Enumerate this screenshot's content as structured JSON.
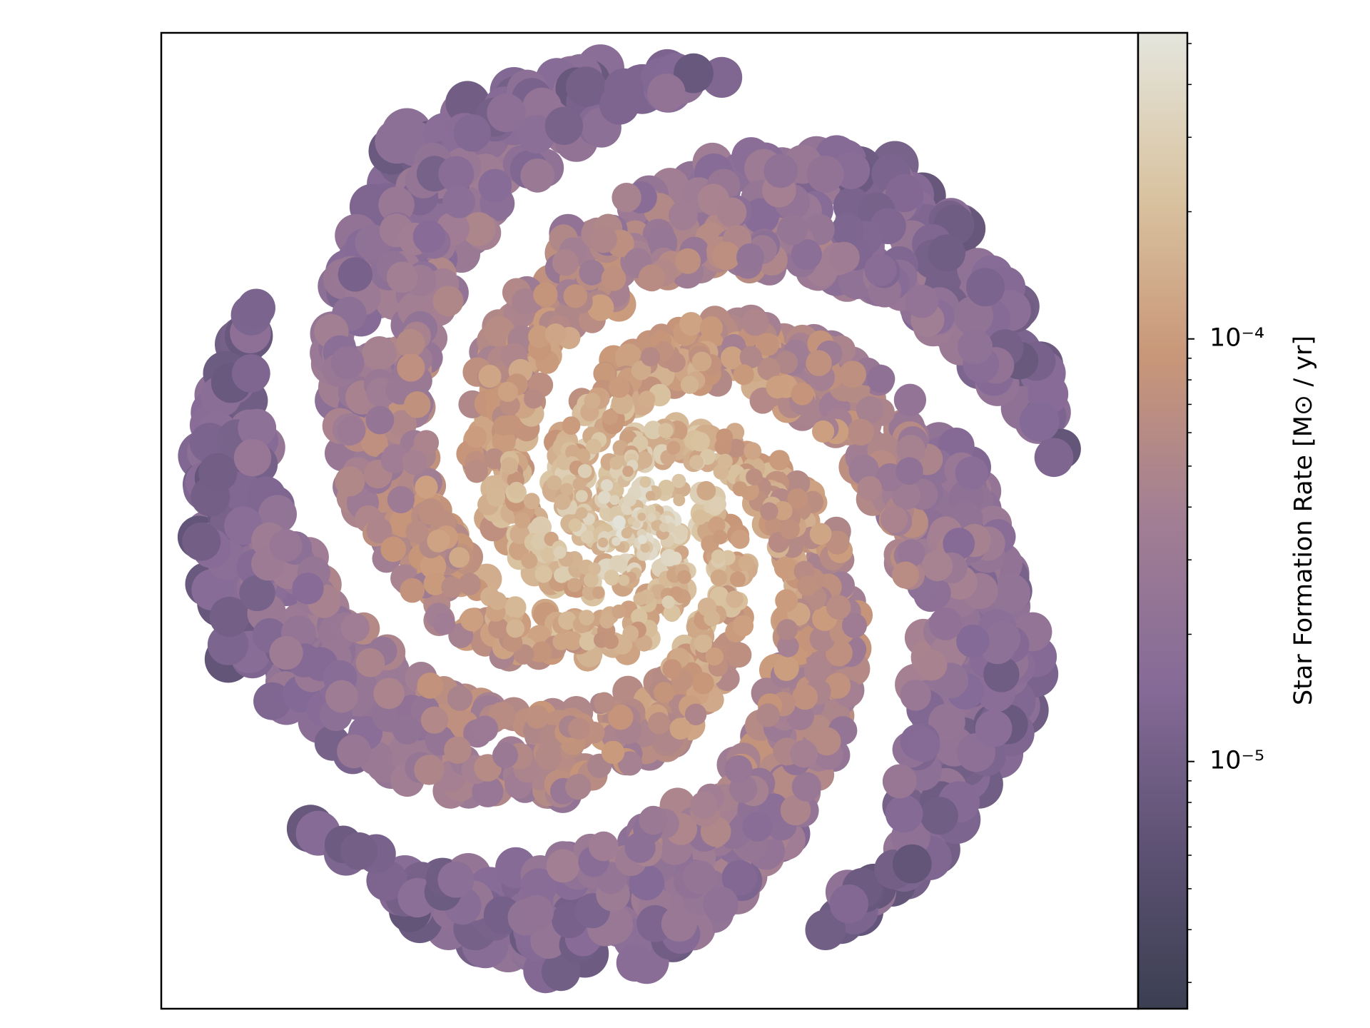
{
  "chart_data": {
    "type": "image",
    "colorbar": {
      "label": "Star Formation Rate [M⊙ / yr]",
      "scale": "log",
      "lim": [
        2.6e-06,
        0.00053
      ],
      "ticks": [
        {
          "value": 1e-05,
          "label": "10⁻⁵"
        },
        {
          "value": 0.0001,
          "label": "10⁻⁴"
        }
      ],
      "minor_ticks": [
        3e-06,
        4e-06,
        5e-06,
        6e-06,
        7e-06,
        8e-06,
        9e-06,
        2e-05,
        3e-05,
        4e-05,
        5e-05,
        6e-05,
        7e-05,
        8e-05,
        9e-05,
        0.0002,
        0.0003,
        0.0004,
        0.0005
      ],
      "colormap": [
        "#3b3f52",
        "#5e5274",
        "#866b97",
        "#a17e94",
        "#c89678",
        "#d9c3a0",
        "#e4e5dd"
      ]
    }
  }
}
